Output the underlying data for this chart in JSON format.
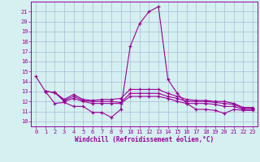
{
  "background_color": "#d4f0f0",
  "grid_color": "#b0b8d8",
  "line_color": "#990099",
  "xlabel": "Windchill (Refroidissement éolien,°C)",
  "xlim": [
    -0.5,
    23.5
  ],
  "ylim": [
    9.5,
    22.0
  ],
  "yticks": [
    10,
    11,
    12,
    13,
    14,
    15,
    16,
    17,
    18,
    19,
    20,
    21
  ],
  "xticks": [
    0,
    1,
    2,
    3,
    4,
    5,
    6,
    7,
    8,
    9,
    10,
    11,
    12,
    13,
    14,
    15,
    16,
    17,
    18,
    19,
    20,
    21,
    22,
    23
  ],
  "series": [
    {
      "x": [
        0,
        1,
        2,
        3,
        4,
        5,
        6,
        7,
        8,
        9,
        10,
        11,
        12,
        13,
        14,
        15,
        16,
        17,
        18,
        19,
        20,
        21,
        22,
        23
      ],
      "y": [
        14.5,
        13.0,
        11.8,
        11.9,
        11.5,
        11.5,
        10.9,
        10.9,
        10.4,
        11.2,
        17.5,
        19.8,
        21.0,
        21.5,
        14.2,
        12.8,
        11.8,
        11.2,
        11.2,
        11.1,
        10.8,
        11.2,
        11.1,
        11.1
      ]
    },
    {
      "x": [
        1,
        2,
        3,
        4,
        5,
        6,
        7,
        8,
        9,
        10,
        11,
        12,
        13,
        14,
        15,
        16,
        17,
        18,
        19,
        20,
        21,
        22,
        23
      ],
      "y": [
        13.0,
        12.9,
        12.0,
        12.3,
        12.0,
        11.8,
        11.8,
        11.8,
        11.8,
        12.5,
        12.5,
        12.5,
        12.5,
        12.3,
        12.0,
        11.8,
        11.8,
        11.8,
        11.7,
        11.5,
        11.5,
        11.2,
        11.2
      ]
    },
    {
      "x": [
        1,
        2,
        3,
        4,
        5,
        6,
        7,
        8,
        9,
        10,
        11,
        12,
        13,
        14,
        15,
        16,
        17,
        18,
        19,
        20,
        21,
        22,
        23
      ],
      "y": [
        13.0,
        12.9,
        12.1,
        12.5,
        12.1,
        12.0,
        12.0,
        12.0,
        11.9,
        12.8,
        12.8,
        12.8,
        12.8,
        12.5,
        12.3,
        12.0,
        12.0,
        12.0,
        11.9,
        11.8,
        11.7,
        11.3,
        11.3
      ]
    },
    {
      "x": [
        1,
        2,
        3,
        4,
        5,
        6,
        7,
        8,
        9,
        10,
        11,
        12,
        13,
        14,
        15,
        16,
        17,
        18,
        19,
        20,
        21,
        22,
        23
      ],
      "y": [
        13.0,
        12.9,
        12.2,
        12.7,
        12.2,
        12.1,
        12.2,
        12.2,
        12.3,
        13.2,
        13.2,
        13.2,
        13.2,
        12.8,
        12.5,
        12.2,
        12.1,
        12.1,
        12.0,
        12.0,
        11.8,
        11.4,
        11.4
      ]
    }
  ]
}
